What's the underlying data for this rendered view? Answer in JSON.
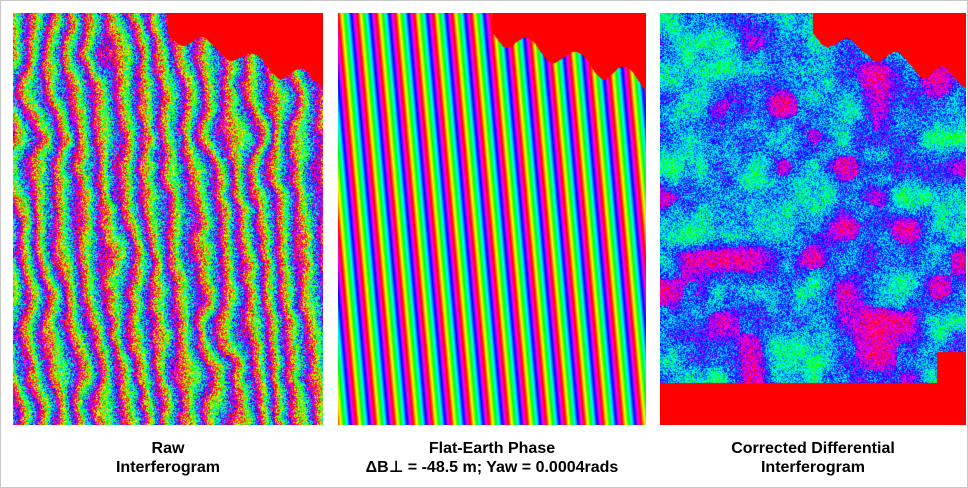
{
  "panels": [
    {
      "id": "raw",
      "caption_line1": "Raw",
      "caption_line2": "Interferogram"
    },
    {
      "id": "flat",
      "caption_line1": "Flat-Earth Phase",
      "caption_line2": "ΔB⊥ = -48.5 m; Yaw = 0.0004rads"
    },
    {
      "id": "corrected",
      "caption_line1": "Corrected Differential",
      "caption_line2": "Interferogram"
    }
  ],
  "colors": {
    "masked_region": "#ff0000",
    "background": "#ffffff"
  }
}
